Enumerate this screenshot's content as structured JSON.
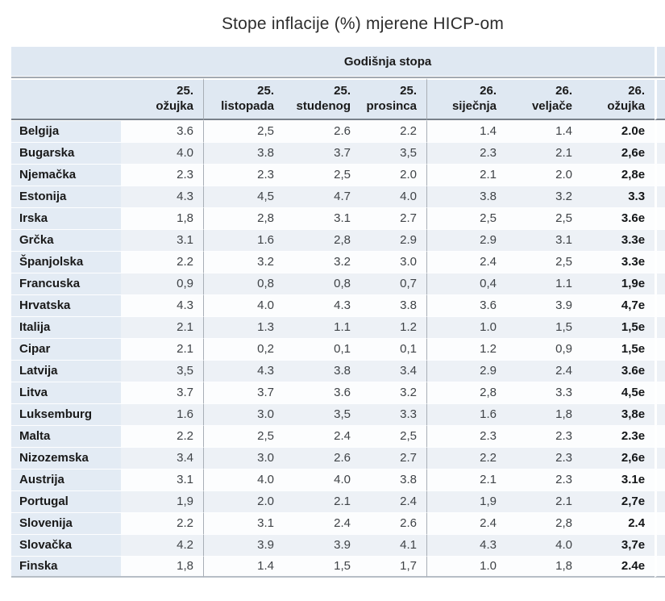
{
  "title": "Stope inflacije (%) mjerene HICP-om",
  "table": {
    "group_header": "Godišnja stopa",
    "columns": [
      {
        "line1": "25.",
        "line2": "ožujka"
      },
      {
        "line1": "25.",
        "line2": "listopada"
      },
      {
        "line1": "25.",
        "line2": "studenog"
      },
      {
        "line1": "25.",
        "line2": "prosinca"
      },
      {
        "line1": "26.",
        "line2": "siječnja"
      },
      {
        "line1": "26.",
        "line2": "veljače"
      },
      {
        "line1": "26.",
        "line2": "ožujka"
      }
    ]
  },
  "chart_data": {
    "type": "table",
    "title": "Stope inflacije (%) mjerene HICP-om",
    "group_header": "Godišnja stopa",
    "columns": [
      "25. ožujka",
      "25. listopada",
      "25. studenog",
      "25. prosinca",
      "26. siječnja",
      "26. veljače",
      "26. ožujka"
    ],
    "rows": [
      [
        "Belgija",
        "3.6",
        "2,5",
        "2.6",
        "2.2",
        "1.4",
        "1.4",
        "2.0e"
      ],
      [
        "Bugarska",
        "4.0",
        "3.8",
        "3.7",
        "3,5",
        "2.3",
        "2.1",
        "2,6e"
      ],
      [
        "Njemačka",
        "2.3",
        "2.3",
        "2,5",
        "2.0",
        "2.1",
        "2.0",
        "2,8e"
      ],
      [
        "Estonija",
        "4.3",
        "4,5",
        "4.7",
        "4.0",
        "3.8",
        "3.2",
        "3.3"
      ],
      [
        "Irska",
        "1,8",
        "2,8",
        "3.1",
        "2.7",
        "2,5",
        "2,5",
        "3.6e"
      ],
      [
        "Grčka",
        "3.1",
        "1.6",
        "2,8",
        "2.9",
        "2.9",
        "3.1",
        "3.3e"
      ],
      [
        "Španjolska",
        "2.2",
        "3.2",
        "3.2",
        "3.0",
        "2.4",
        "2,5",
        "3.3e"
      ],
      [
        "Francuska",
        "0,9",
        "0,8",
        "0,8",
        "0,7",
        "0,4",
        "1.1",
        "1,9e"
      ],
      [
        "Hrvatska",
        "4.3",
        "4.0",
        "4.3",
        "3.8",
        "3.6",
        "3.9",
        "4,7e"
      ],
      [
        "Italija",
        "2.1",
        "1.3",
        "1.1",
        "1.2",
        "1.0",
        "1,5",
        "1,5e"
      ],
      [
        "Cipar",
        "2.1",
        "0,2",
        "0,1",
        "0,1",
        "1.2",
        "0,9",
        "1,5e"
      ],
      [
        "Latvija",
        "3,5",
        "4.3",
        "3.8",
        "3.4",
        "2.9",
        "2.4",
        "3.6e"
      ],
      [
        "Litva",
        "3.7",
        "3.7",
        "3.6",
        "3.2",
        "2,8",
        "3.3",
        "4,5e"
      ],
      [
        "Luksemburg",
        "1.6",
        "3.0",
        "3,5",
        "3.3",
        "1.6",
        "1,8",
        "3,8e"
      ],
      [
        "Malta",
        "2.2",
        "2,5",
        "2.4",
        "2,5",
        "2.3",
        "2.3",
        "2.3e"
      ],
      [
        "Nizozemska",
        "3.4",
        "3.0",
        "2.6",
        "2.7",
        "2.2",
        "2.3",
        "2,6e"
      ],
      [
        "Austrija",
        "3.1",
        "4.0",
        "4.0",
        "3.8",
        "2.1",
        "2.3",
        "3.1e"
      ],
      [
        "Portugal",
        "1,9",
        "2.0",
        "2.1",
        "2.4",
        "1,9",
        "2.1",
        "2,7e"
      ],
      [
        "Slovenija",
        "2.2",
        "3.1",
        "2.4",
        "2.6",
        "2.4",
        "2,8",
        "2.4"
      ],
      [
        "Slovačka",
        "4.2",
        "3.9",
        "3.9",
        "4.1",
        "4.3",
        "4.0",
        "3,7e"
      ],
      [
        "Finska",
        "1,8",
        "1.4",
        "1,5",
        "1,7",
        "1.0",
        "1,8",
        "2.4e"
      ]
    ],
    "layout": {
      "striped_rows": true,
      "bold_last_column": true,
      "group_dividers_after_columns": [
        1,
        4
      ]
    }
  },
  "colors": {
    "header_band_bg": "#dfe8f2",
    "country_column_bg": "#e3ebf4",
    "stripe_row_bg": "#edf1f6",
    "white_row_bg": "#fcfdfe",
    "divider": "#a8aeb6",
    "header_underline": "#79818a",
    "bottom_border": "#b7bec6"
  }
}
